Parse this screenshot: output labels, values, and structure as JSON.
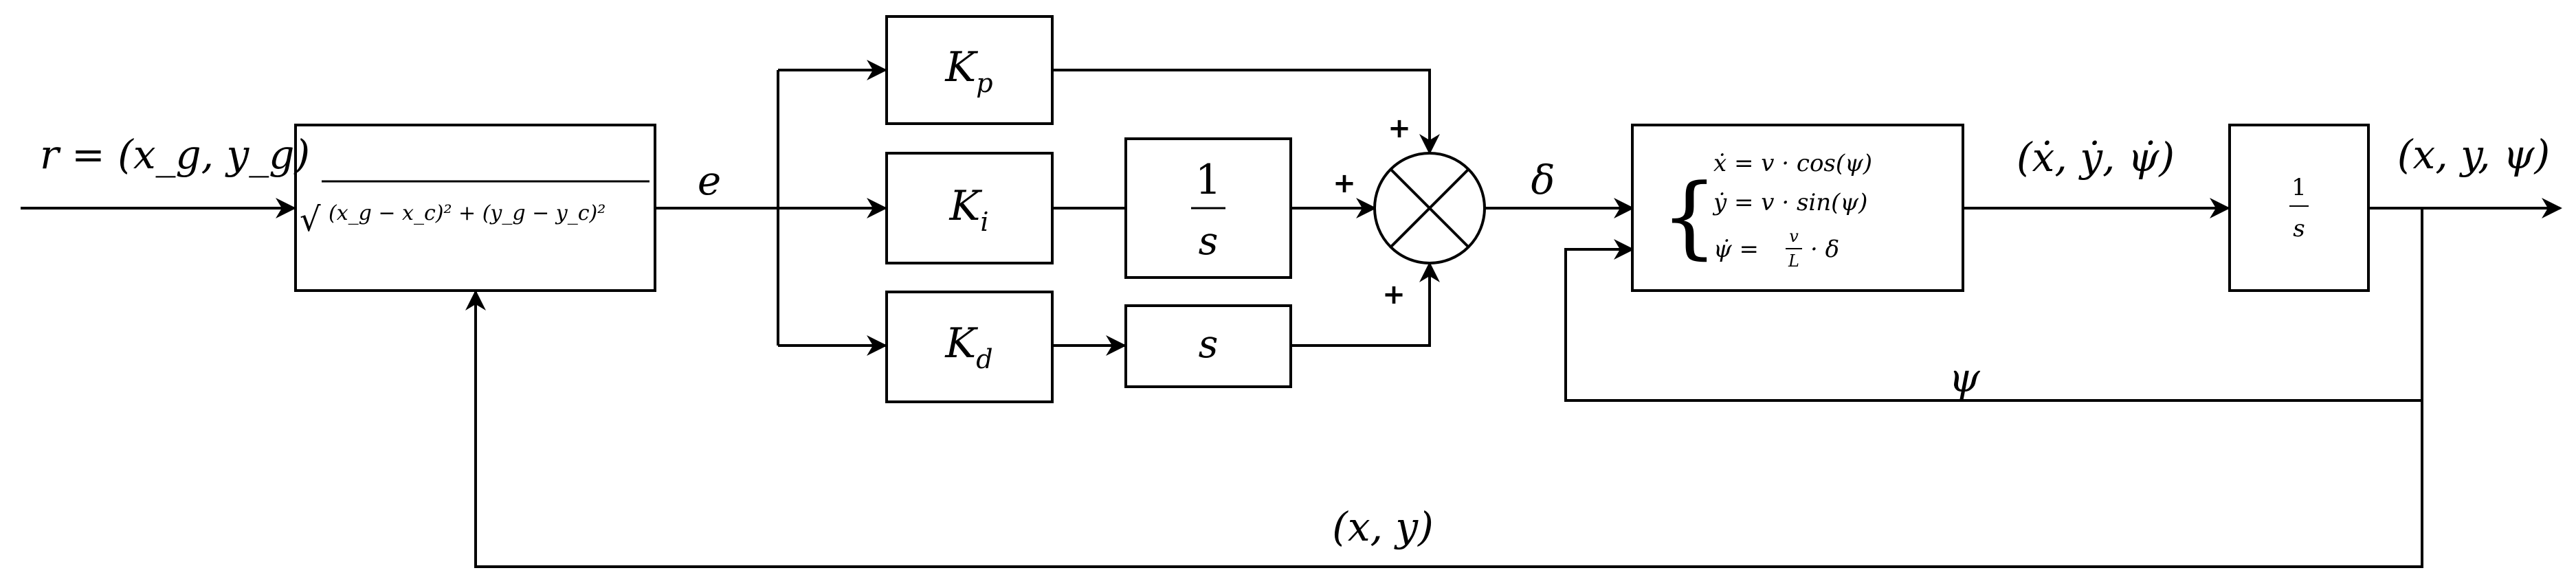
{
  "diagram": {
    "input_label": "r = (x_g, y_g)",
    "error_label": "e",
    "control_label": "δ",
    "state_rate_label": "(ẋ, ẏ, ψ̇)",
    "state_label": "(x, y, ψ)",
    "heading_feedback_label": "ψ",
    "position_feedback_label": "(x, y)",
    "distance_block": {
      "radical": "√",
      "expr": "(x_g − x_c)² + (y_g − y_c)²"
    },
    "gains": {
      "kp": {
        "main": "K",
        "sub": "p"
      },
      "ki": {
        "main": "K",
        "sub": "i"
      },
      "kd": {
        "main": "K",
        "sub": "d"
      }
    },
    "integrator_i": {
      "num": "1",
      "den": "s"
    },
    "derivative": "s",
    "sum_signs": {
      "top": "+",
      "left": "+",
      "bottom": "+"
    },
    "model": {
      "brace": "{",
      "eq1": "ẋ = v · cos(ψ)",
      "eq2": "ẏ = v · sin(ψ)",
      "eq3_lhs": "ψ̇ =",
      "eq3_num": "v",
      "eq3_den": "L",
      "eq3_rhs": "· δ"
    },
    "integrator_out": {
      "num": "1",
      "den": "s"
    }
  }
}
